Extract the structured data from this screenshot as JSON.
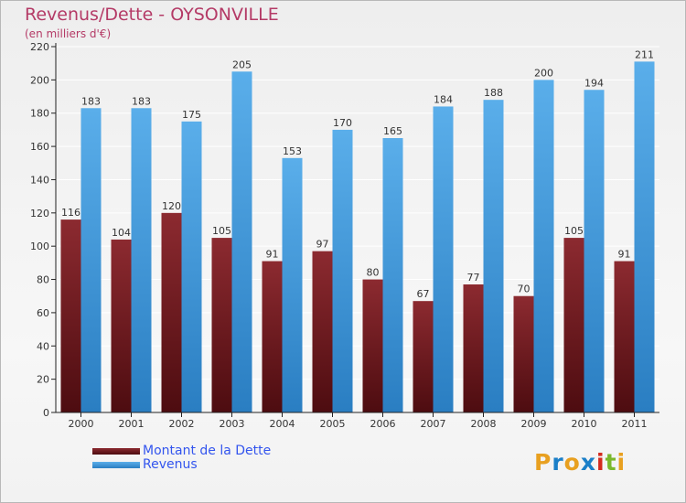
{
  "title": "Revenus/Dette - OYSONVILLE",
  "subtitle": "(en milliers d'€)",
  "logo": {
    "letters": [
      "P",
      "r",
      "o",
      "x",
      "i",
      "t",
      "i"
    ],
    "colors": [
      "#e8a020",
      "#1b7fc8",
      "#e8a020",
      "#1b7fc8",
      "#d42a1e",
      "#7ab82c",
      "#e8a020"
    ]
  },
  "colors": {
    "dette": "#7a1f25",
    "revenus": "#4ba6e8",
    "title": "#b43a66",
    "legend_text": "#3355ee"
  },
  "chart_data": {
    "type": "bar",
    "categories": [
      "2000",
      "2001",
      "2002",
      "2003",
      "2004",
      "2005",
      "2006",
      "2007",
      "2008",
      "2009",
      "2010",
      "2011"
    ],
    "series": [
      {
        "name": "Montant de la Dette",
        "values": [
          116,
          104,
          120,
          105,
          91,
          97,
          80,
          67,
          77,
          70,
          105,
          91
        ]
      },
      {
        "name": "Revenus",
        "values": [
          183,
          183,
          175,
          205,
          153,
          170,
          165,
          184,
          188,
          200,
          194,
          211
        ]
      }
    ],
    "title": "Revenus/Dette - OYSONVILLE",
    "subtitle": "(en milliers d'€)",
    "ylim": [
      0,
      220
    ],
    "yticks": [
      0,
      20,
      40,
      60,
      80,
      100,
      120,
      140,
      160,
      180,
      200,
      220
    ],
    "grid": true,
    "legend": "bottom-left"
  }
}
